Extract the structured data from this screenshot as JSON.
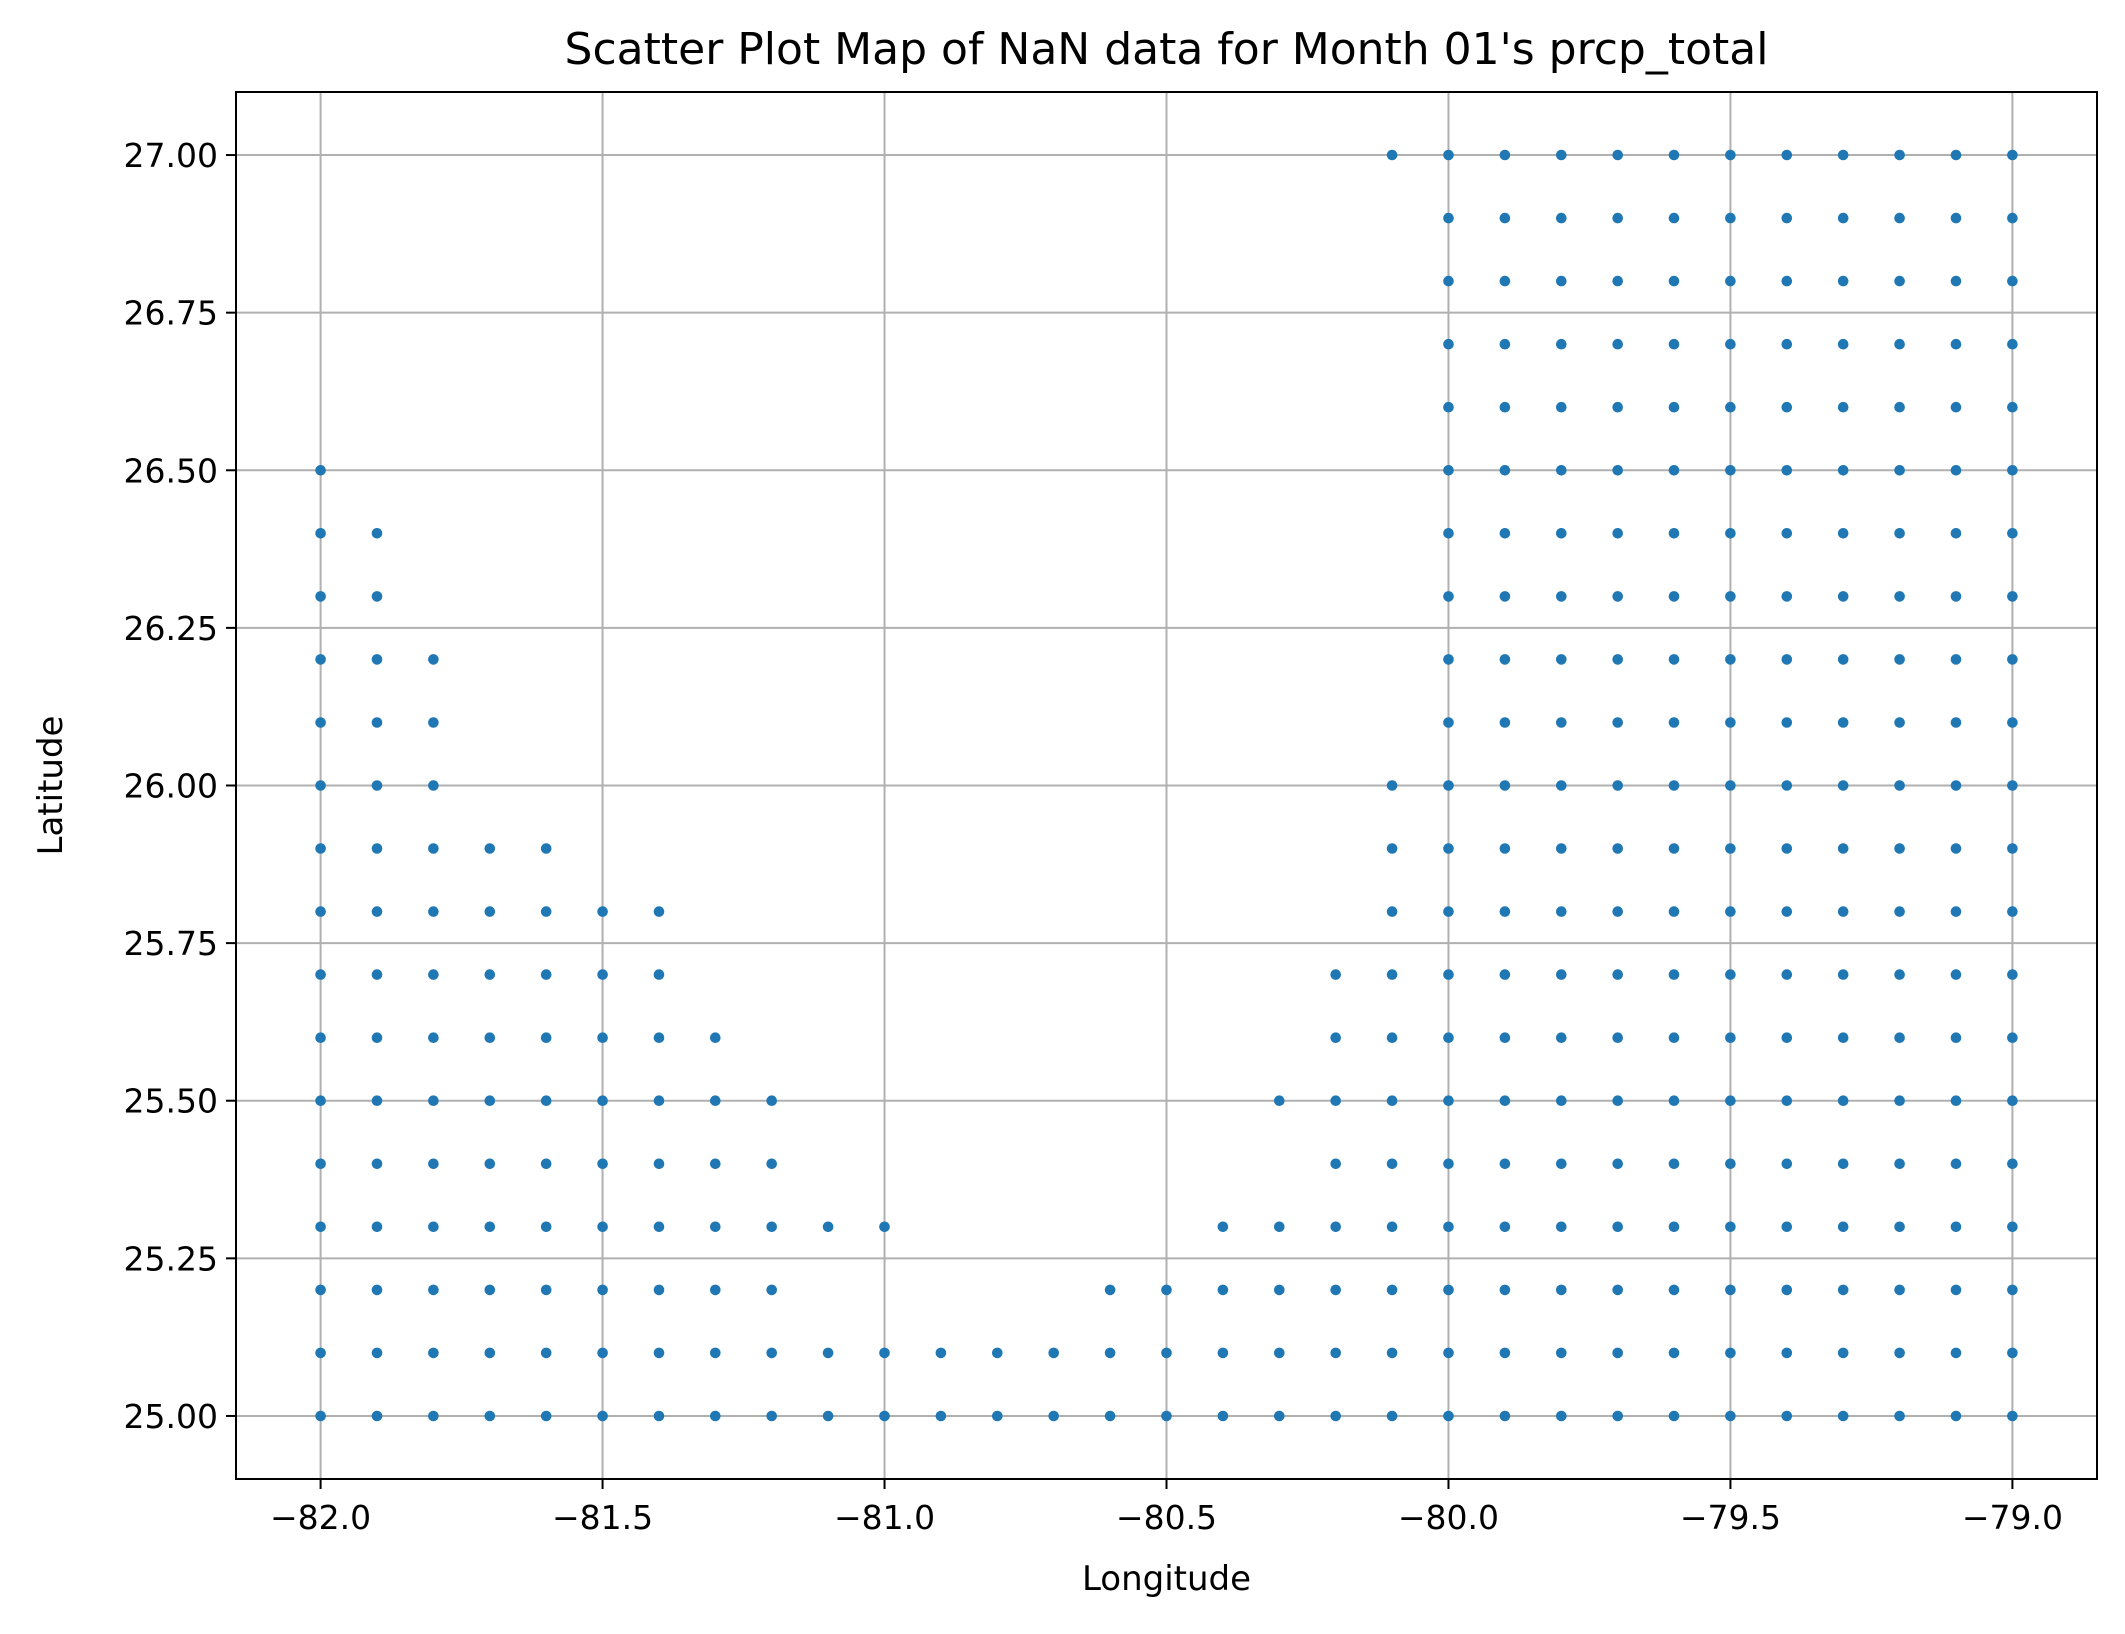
{
  "chart_data": {
    "type": "scatter",
    "title": "Scatter Plot Map of NaN data for Month 01's prcp_total",
    "xlabel": "Longitude",
    "ylabel": "Latitude",
    "xlim": [
      -82.15,
      -78.85
    ],
    "ylim": [
      24.9,
      27.1
    ],
    "xticks": [
      -82.0,
      -81.5,
      -81.0,
      -80.5,
      -80.0,
      -79.5,
      -79.0
    ],
    "xtick_labels": [
      "−82.0",
      "−81.5",
      "−81.0",
      "−80.5",
      "−80.0",
      "−79.5",
      "−79.0"
    ],
    "yticks": [
      25.0,
      25.25,
      25.5,
      25.75,
      26.0,
      26.25,
      26.5,
      26.75,
      27.0
    ],
    "ytick_labels": [
      "25.00",
      "25.25",
      "25.50",
      "25.75",
      "26.00",
      "26.25",
      "26.50",
      "26.75",
      "27.00"
    ],
    "grid": true,
    "point_color": "#1f77b4",
    "grid_color": "#b0b0b0",
    "lon_grid_start": -82.0,
    "lon_grid_step": 0.1,
    "lat_grid_start": 25.0,
    "lat_grid_step": 0.1,
    "lat_columns": [
      {
        "lon": -82.0,
        "lat_ranges": [
          [
            25.0,
            26.5
          ]
        ]
      },
      {
        "lon": -81.9,
        "lat_ranges": [
          [
            25.0,
            26.4
          ]
        ]
      },
      {
        "lon": -81.8,
        "lat_ranges": [
          [
            25.0,
            26.2
          ]
        ]
      },
      {
        "lon": -81.7,
        "lat_ranges": [
          [
            25.0,
            25.9
          ]
        ]
      },
      {
        "lon": -81.6,
        "lat_ranges": [
          [
            25.0,
            25.9
          ]
        ]
      },
      {
        "lon": -81.5,
        "lat_ranges": [
          [
            25.0,
            25.8
          ]
        ]
      },
      {
        "lon": -81.4,
        "lat_ranges": [
          [
            25.0,
            25.8
          ]
        ]
      },
      {
        "lon": -81.3,
        "lat_ranges": [
          [
            25.0,
            25.6
          ]
        ]
      },
      {
        "lon": -81.2,
        "lat_ranges": [
          [
            25.0,
            25.5
          ]
        ]
      },
      {
        "lon": -81.1,
        "lat_ranges": [
          [
            25.0,
            25.1
          ],
          [
            25.3,
            25.3
          ]
        ]
      },
      {
        "lon": -81.0,
        "lat_ranges": [
          [
            25.0,
            25.1
          ],
          [
            25.3,
            25.3
          ]
        ]
      },
      {
        "lon": -80.9,
        "lat_ranges": [
          [
            25.0,
            25.1
          ]
        ]
      },
      {
        "lon": -80.8,
        "lat_ranges": [
          [
            25.0,
            25.1
          ]
        ]
      },
      {
        "lon": -80.7,
        "lat_ranges": [
          [
            25.0,
            25.1
          ]
        ]
      },
      {
        "lon": -80.6,
        "lat_ranges": [
          [
            25.0,
            25.2
          ]
        ]
      },
      {
        "lon": -80.5,
        "lat_ranges": [
          [
            25.0,
            25.2
          ]
        ]
      },
      {
        "lon": -80.4,
        "lat_ranges": [
          [
            25.0,
            25.3
          ]
        ]
      },
      {
        "lon": -80.3,
        "lat_ranges": [
          [
            25.0,
            25.3
          ],
          [
            25.5,
            25.5
          ]
        ]
      },
      {
        "lon": -80.2,
        "lat_ranges": [
          [
            25.0,
            25.7
          ]
        ]
      },
      {
        "lon": -80.1,
        "lat_ranges": [
          [
            25.0,
            26.0
          ],
          [
            27.0,
            27.0
          ]
        ]
      },
      {
        "lon": -80.0,
        "lat_ranges": [
          [
            25.0,
            27.0
          ]
        ]
      },
      {
        "lon": -79.9,
        "lat_ranges": [
          [
            25.0,
            27.0
          ]
        ]
      },
      {
        "lon": -79.8,
        "lat_ranges": [
          [
            25.0,
            27.0
          ]
        ]
      },
      {
        "lon": -79.7,
        "lat_ranges": [
          [
            25.0,
            27.0
          ]
        ]
      },
      {
        "lon": -79.6,
        "lat_ranges": [
          [
            25.0,
            27.0
          ]
        ]
      },
      {
        "lon": -79.5,
        "lat_ranges": [
          [
            25.0,
            27.0
          ]
        ]
      },
      {
        "lon": -79.4,
        "lat_ranges": [
          [
            25.0,
            27.0
          ]
        ]
      },
      {
        "lon": -79.3,
        "lat_ranges": [
          [
            25.0,
            27.0
          ]
        ]
      },
      {
        "lon": -79.2,
        "lat_ranges": [
          [
            25.0,
            27.0
          ]
        ]
      },
      {
        "lon": -79.1,
        "lat_ranges": [
          [
            25.0,
            27.0
          ]
        ]
      },
      {
        "lon": -79.0,
        "lat_ranges": [
          [
            25.0,
            27.0
          ]
        ]
      }
    ]
  }
}
